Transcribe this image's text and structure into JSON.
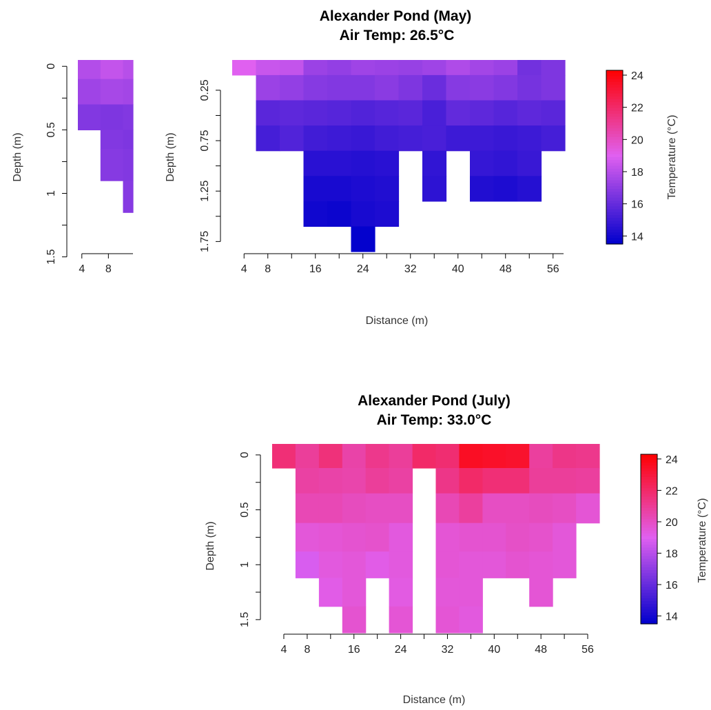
{
  "colorscale": {
    "min": 13.5,
    "max": 24.3,
    "low_color": "#0000cc",
    "mid_color": "#e060f0",
    "high_color": "#ff0000",
    "mid_value": 19.0
  },
  "chart_data": [
    {
      "id": "may-left",
      "type": "heatmap",
      "title": "",
      "subtitle": "",
      "xlabel": "",
      "ylabel": "Depth (m)",
      "x_ticks": [
        "4",
        "8"
      ],
      "y_ticks": [
        "0",
        "0.5",
        "1",
        "1.5"
      ],
      "x_edges": [
        3.4,
        6.8,
        10.2,
        11.7
      ],
      "y_edges": [
        -0.05,
        0.1,
        0.3,
        0.5,
        0.65,
        0.9,
        1.15,
        1.35
      ],
      "values": [
        [
          17.9,
          18.3,
          18.0
        ],
        [
          17.4,
          17.6,
          17.5
        ],
        [
          16.7,
          16.6,
          16.7
        ],
        [
          null,
          16.7,
          16.6
        ],
        [
          null,
          16.8,
          16.7
        ],
        [
          null,
          null,
          16.8
        ]
      ],
      "legend": null
    },
    {
      "id": "may",
      "type": "heatmap",
      "title": "Alexander Pond (May)",
      "subtitle": "Air Temp: 26.5°C",
      "xlabel": "Distance (m)",
      "ylabel": "Depth (m)",
      "x_ticks": [
        "4",
        "8",
        "16",
        "24",
        "32",
        "40",
        "48",
        "56"
      ],
      "y_ticks": [
        "0.25",
        "0.75",
        "1.25",
        "1.75"
      ],
      "x_edges": [
        2,
        6,
        10,
        14,
        18,
        22,
        26,
        30,
        34,
        38,
        42,
        46,
        50,
        54,
        58
      ],
      "y_edges": [
        -0.05,
        0.1,
        0.35,
        0.6,
        0.85,
        1.1,
        1.35,
        1.6,
        1.85
      ],
      "values": [
        [
          19.0,
          18.4,
          18.3,
          17.3,
          17.1,
          17.4,
          17.3,
          17.2,
          17.4,
          17.8,
          17.5,
          17.3,
          16.3,
          16.6
        ],
        [
          null,
          17.3,
          17.1,
          16.8,
          16.7,
          16.7,
          16.9,
          16.6,
          16.1,
          16.8,
          16.9,
          16.7,
          16.4,
          16.6
        ],
        [
          null,
          15.7,
          15.8,
          15.7,
          15.6,
          15.5,
          15.6,
          15.7,
          15.3,
          15.9,
          15.8,
          15.6,
          15.8,
          15.7
        ],
        [
          null,
          15.2,
          15.5,
          15.1,
          15.0,
          14.9,
          15.1,
          15.2,
          15.3,
          15.0,
          15.0,
          14.9,
          15.0,
          15.2
        ],
        [
          null,
          null,
          null,
          14.5,
          14.5,
          14.4,
          14.5,
          null,
          14.7,
          null,
          14.8,
          14.7,
          14.9,
          null
        ],
        [
          null,
          null,
          null,
          14.1,
          14.1,
          14.2,
          14.3,
          null,
          14.6,
          null,
          14.3,
          14.2,
          14.4,
          null
        ],
        [
          null,
          null,
          null,
          13.9,
          13.8,
          14.1,
          14.2,
          null,
          null,
          null,
          null,
          null,
          null,
          null
        ],
        [
          null,
          null,
          null,
          null,
          null,
          13.6,
          null,
          null,
          null,
          null,
          null,
          null,
          null,
          null
        ]
      ],
      "legend": {
        "label": "Temperature (°C)",
        "ticks": [
          "14",
          "16",
          "18",
          "20",
          "22",
          "24"
        ]
      }
    },
    {
      "id": "july",
      "type": "heatmap",
      "title": "Alexander Pond (July)",
      "subtitle": "Air Temp: 33.0°C",
      "xlabel": "Distance (m)",
      "ylabel": "Depth (m)",
      "x_ticks": [
        "4",
        "8",
        "16",
        "24",
        "32",
        "40",
        "48",
        "56"
      ],
      "y_ticks": [
        "0",
        "0.5",
        "1",
        "1.5"
      ],
      "x_edges": [
        2,
        6,
        10,
        14,
        18,
        22,
        26,
        30,
        34,
        38,
        42,
        46,
        50,
        54,
        58
      ],
      "y_edges": [
        -0.1,
        0.12,
        0.35,
        0.62,
        0.88,
        1.12,
        1.38,
        1.62
      ],
      "values": [
        [
          21.7,
          20.9,
          21.6,
          20.6,
          21.2,
          20.9,
          22.0,
          21.8,
          23.5,
          23.4,
          23.3,
          20.8,
          21.3,
          21.2
        ],
        [
          null,
          20.7,
          20.6,
          20.5,
          20.9,
          20.7,
          null,
          21.3,
          22.0,
          21.7,
          21.7,
          20.9,
          20.9,
          20.8
        ],
        [
          null,
          20.3,
          20.3,
          20.1,
          20.0,
          20.0,
          null,
          20.3,
          20.8,
          20.0,
          20.0,
          20.1,
          20.0,
          19.6
        ],
        [
          null,
          19.5,
          19.6,
          19.7,
          19.8,
          19.4,
          null,
          19.6,
          19.7,
          19.7,
          19.9,
          19.8,
          19.5,
          null
        ],
        [
          null,
          18.8,
          19.4,
          19.5,
          19.2,
          19.4,
          null,
          19.6,
          19.5,
          19.5,
          19.7,
          19.6,
          19.5,
          null
        ],
        [
          null,
          null,
          19.2,
          19.5,
          null,
          19.3,
          null,
          19.5,
          19.5,
          null,
          null,
          19.6,
          null,
          null
        ],
        [
          null,
          null,
          null,
          19.7,
          null,
          19.6,
          null,
          19.6,
          19.4,
          null,
          null,
          null,
          null,
          null
        ]
      ],
      "legend": {
        "label": "Temperature (°C)",
        "ticks": [
          "14",
          "16",
          "18",
          "20",
          "22",
          "24"
        ]
      }
    }
  ]
}
